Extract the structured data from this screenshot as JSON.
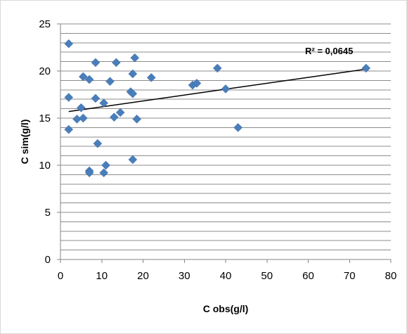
{
  "chart_data": {
    "type": "scatter",
    "xlabel": "C obs(g/l)",
    "ylabel": "C sim(g/l)",
    "xlim": [
      0,
      80
    ],
    "ylim": [
      0,
      25
    ],
    "x_ticks": [
      "0",
      "10",
      "20",
      "30",
      "40",
      "50",
      "60",
      "70",
      "80"
    ],
    "y_ticks": [
      "0",
      "5",
      "10",
      "15",
      "20",
      "25"
    ],
    "grid": "horizontal minor lines every 1 unit",
    "legend": "none",
    "marker": "diamond",
    "marker_color": "#4a7ebb",
    "trendline": {
      "type": "linear",
      "x": [
        2,
        74
      ],
      "y": [
        15.7,
        20.2
      ],
      "color": "#000000"
    },
    "annotation": "R² = 0,0645",
    "points": [
      {
        "x": 2,
        "y": 22.9
      },
      {
        "x": 2,
        "y": 17.2
      },
      {
        "x": 2,
        "y": 13.8
      },
      {
        "x": 4,
        "y": 14.9
      },
      {
        "x": 5,
        "y": 16.1
      },
      {
        "x": 5.5,
        "y": 19.4
      },
      {
        "x": 5.5,
        "y": 15.0
      },
      {
        "x": 7,
        "y": 19.1
      },
      {
        "x": 7,
        "y": 9.4
      },
      {
        "x": 7,
        "y": 9.2
      },
      {
        "x": 8.5,
        "y": 20.9
      },
      {
        "x": 8.5,
        "y": 17.1
      },
      {
        "x": 9,
        "y": 12.3
      },
      {
        "x": 10.5,
        "y": 9.2
      },
      {
        "x": 10.5,
        "y": 16.6
      },
      {
        "x": 11,
        "y": 10.0
      },
      {
        "x": 12,
        "y": 18.9
      },
      {
        "x": 13,
        "y": 15.1
      },
      {
        "x": 13.5,
        "y": 20.9
      },
      {
        "x": 14.5,
        "y": 15.6
      },
      {
        "x": 17,
        "y": 17.8
      },
      {
        "x": 17.5,
        "y": 17.6
      },
      {
        "x": 17.5,
        "y": 19.7
      },
      {
        "x": 17.5,
        "y": 10.6
      },
      {
        "x": 18,
        "y": 21.4
      },
      {
        "x": 18.5,
        "y": 14.9
      },
      {
        "x": 22,
        "y": 19.3
      },
      {
        "x": 32,
        "y": 18.5
      },
      {
        "x": 33,
        "y": 18.7
      },
      {
        "x": 38,
        "y": 20.3
      },
      {
        "x": 40,
        "y": 18.1
      },
      {
        "x": 43,
        "y": 14.0
      },
      {
        "x": 74,
        "y": 20.3
      }
    ]
  }
}
